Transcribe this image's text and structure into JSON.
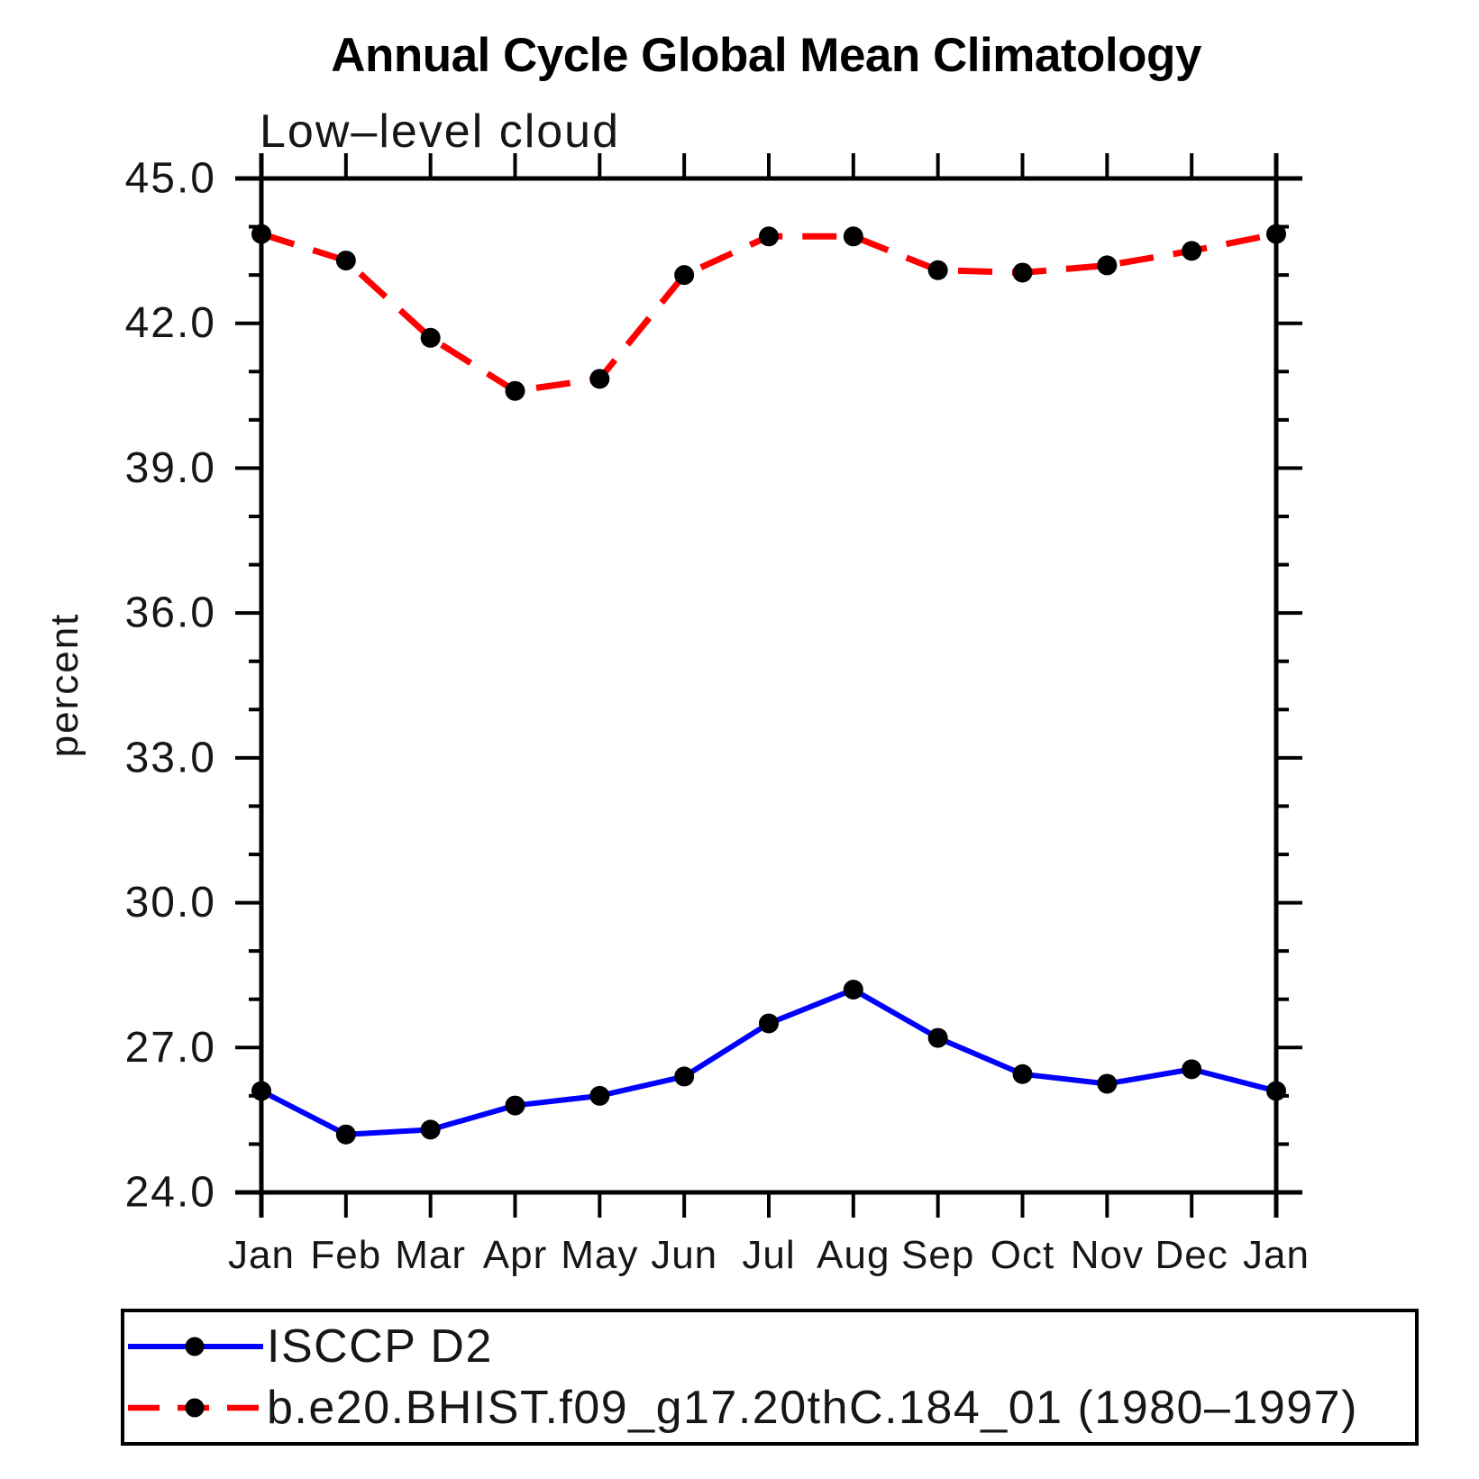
{
  "page": {
    "background": "#ffffff"
  },
  "chart_data": {
    "type": "line",
    "title": "Annual Cycle Global Mean Climatology",
    "subtitle": "Low–level cloud",
    "xlabel": "",
    "ylabel": "percent",
    "ylim": [
      24.0,
      45.0
    ],
    "ytick_major_interval": 3.0,
    "ytick_minor_interval": 1.0,
    "ytick_labels": [
      "24.0",
      "27.0",
      "30.0",
      "33.0",
      "36.0",
      "39.0",
      "42.0",
      "45.0"
    ],
    "x_categories": [
      "Jan",
      "Feb",
      "Mar",
      "Apr",
      "May",
      "Jun",
      "Jul",
      "Aug",
      "Sep",
      "Oct",
      "Nov",
      "Dec",
      "Jan"
    ],
    "grid": false,
    "legend_position": "bottom-left-box",
    "axis_color": "#000000",
    "text_color": "#161616",
    "marker_color": "#000000",
    "series": [
      {
        "name": "ISCCP D2",
        "color": "#0000ff",
        "line_style": "solid",
        "marker": "filled-circle",
        "values": [
          26.1,
          25.2,
          25.3,
          25.8,
          26.0,
          26.4,
          27.5,
          28.2,
          27.2,
          26.45,
          26.25,
          26.55,
          26.1
        ]
      },
      {
        "name": "b.e20.BHIST.f09_g17.20thC.184_01 (1980–1997)",
        "color": "#ff0000",
        "line_style": "dashed",
        "marker": "filled-circle",
        "values": [
          43.85,
          43.3,
          41.7,
          40.6,
          40.85,
          43.0,
          43.8,
          43.8,
          43.1,
          43.05,
          43.2,
          43.5,
          43.85
        ]
      }
    ]
  }
}
